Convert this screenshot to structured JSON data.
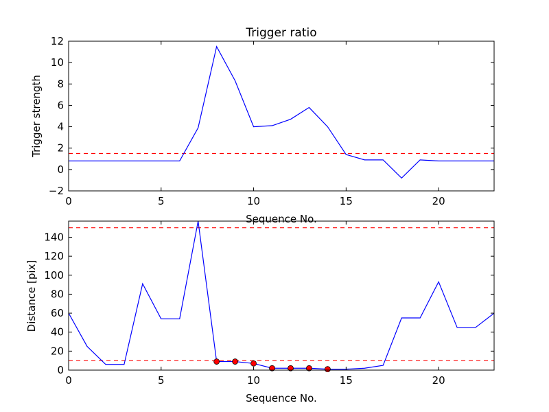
{
  "chart_data": [
    {
      "type": "line",
      "title": "Trigger ratio",
      "xlabel": "Sequence No.",
      "ylabel": "Trigger strength",
      "xlim": [
        0,
        23
      ],
      "ylim": [
        -2,
        12
      ],
      "xticks": [
        0,
        5,
        10,
        15,
        20
      ],
      "yticks": [
        -2,
        0,
        2,
        4,
        6,
        8,
        10,
        12
      ],
      "xtick_labels": [
        "0",
        "5",
        "10",
        "15",
        "20"
      ],
      "ytick_labels": [
        "−2",
        "0",
        "2",
        "4",
        "6",
        "8",
        "10",
        "12"
      ],
      "grid": false,
      "series": [
        {
          "color": "#0000ff",
          "style": "solid",
          "x": [
            0,
            1,
            2,
            3,
            4,
            5,
            6,
            7,
            8,
            9,
            10,
            11,
            12,
            13,
            14,
            15,
            16,
            17,
            18,
            19,
            20,
            21,
            22,
            23
          ],
          "values": [
            0.8,
            0.8,
            0.8,
            0.8,
            0.8,
            0.8,
            0.8,
            3.9,
            11.5,
            8.3,
            4.0,
            4.1,
            4.7,
            5.8,
            4.0,
            1.4,
            0.9,
            0.9,
            -0.8,
            0.9,
            0.8,
            0.8,
            0.8,
            0.8
          ]
        }
      ],
      "hlines": [
        {
          "y": 1.5,
          "color": "#ff0000",
          "style": "dashed"
        }
      ]
    },
    {
      "type": "line",
      "title": "",
      "xlabel": "Sequence No.",
      "ylabel": "Distance [pix]",
      "xlim": [
        0,
        23
      ],
      "ylim": [
        0,
        157
      ],
      "xticks": [
        0,
        5,
        10,
        15,
        20
      ],
      "yticks": [
        0,
        20,
        40,
        60,
        80,
        100,
        120,
        140
      ],
      "xtick_labels": [
        "0",
        "5",
        "10",
        "15",
        "20"
      ],
      "ytick_labels": [
        "0",
        "20",
        "40",
        "60",
        "80",
        "100",
        "120",
        "140"
      ],
      "grid": false,
      "series": [
        {
          "color": "#0000ff",
          "style": "solid",
          "x": [
            0,
            1,
            2,
            3,
            4,
            5,
            6,
            7,
            8,
            9,
            10,
            11,
            12,
            13,
            14,
            15,
            16,
            17,
            18,
            19,
            20,
            21,
            22,
            23
          ],
          "values": [
            60,
            25,
            6,
            6,
            91,
            54,
            54,
            157,
            9,
            9,
            7,
            2,
            2,
            2,
            1,
            1,
            2,
            5,
            55,
            55,
            93,
            45,
            45,
            60
          ]
        },
        {
          "color": "#ff0000",
          "style": "markers",
          "x": [
            8,
            9,
            10,
            11,
            12,
            13,
            14
          ],
          "values": [
            9,
            9,
            7,
            2,
            2,
            2,
            1
          ]
        }
      ],
      "hlines": [
        {
          "y": 150,
          "color": "#ff0000",
          "style": "dashed"
        },
        {
          "y": 10,
          "color": "#ff0000",
          "style": "dashed"
        }
      ]
    }
  ]
}
